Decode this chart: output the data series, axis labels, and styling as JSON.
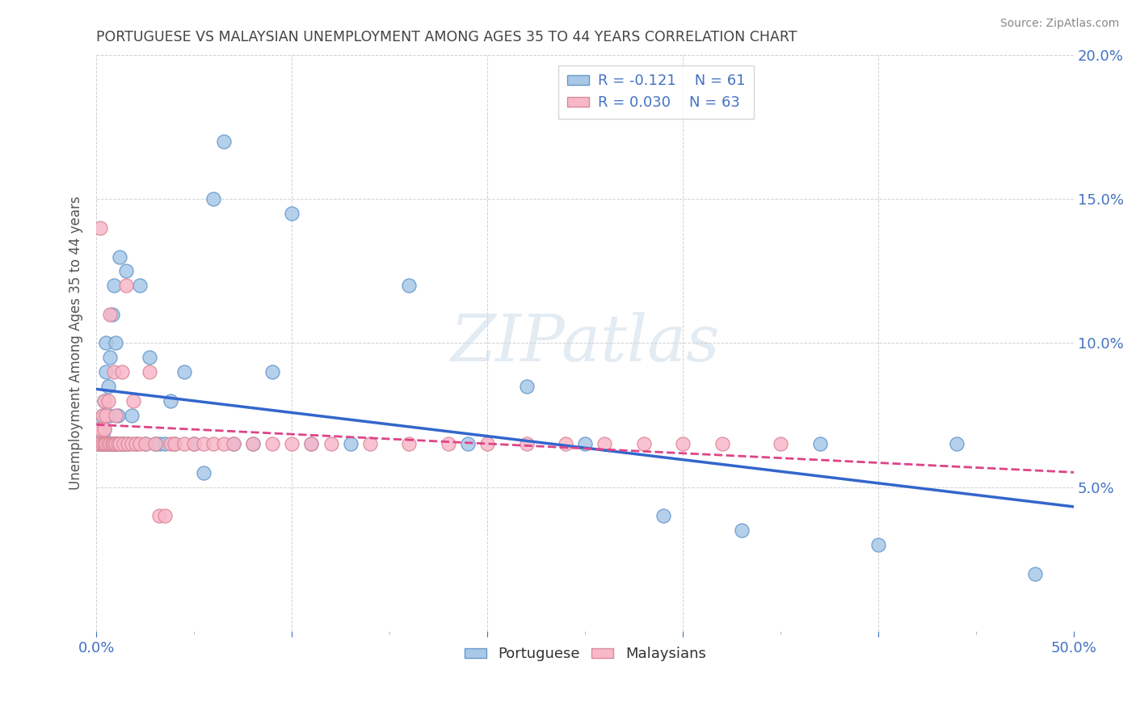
{
  "title": "PORTUGUESE VS MALAYSIAN UNEMPLOYMENT AMONG AGES 35 TO 44 YEARS CORRELATION CHART",
  "source": "Source: ZipAtlas.com",
  "ylabel": "Unemployment Among Ages 35 to 44 years",
  "xlim": [
    0,
    0.5
  ],
  "ylim": [
    0,
    0.2
  ],
  "portuguese_color": "#a8c8e8",
  "portuguese_edge_color": "#6699cc",
  "malaysian_color": "#f8b8c8",
  "malaysian_edge_color": "#dd8899",
  "portuguese_line_color": "#3366cc",
  "malaysian_line_color": "#dd4488",
  "title_color": "#444444",
  "axis_label_color": "#555555",
  "tick_color": "#4472c4",
  "watermark": "ZIPatlas",
  "portuguese_R": -0.121,
  "portuguese_N": 61,
  "malaysian_R": 0.03,
  "malaysian_N": 63,
  "port_x": [
    0.001,
    0.001,
    0.002,
    0.002,
    0.003,
    0.003,
    0.003,
    0.004,
    0.004,
    0.004,
    0.005,
    0.005,
    0.005,
    0.006,
    0.006,
    0.007,
    0.007,
    0.008,
    0.008,
    0.009,
    0.009,
    0.01,
    0.01,
    0.011,
    0.011,
    0.012,
    0.013,
    0.014,
    0.015,
    0.016,
    0.018,
    0.02,
    0.022,
    0.025,
    0.027,
    0.03,
    0.032,
    0.035,
    0.038,
    0.04,
    0.045,
    0.05,
    0.055,
    0.06,
    0.065,
    0.07,
    0.08,
    0.09,
    0.1,
    0.11,
    0.13,
    0.16,
    0.19,
    0.22,
    0.25,
    0.29,
    0.33,
    0.37,
    0.4,
    0.44,
    0.48
  ],
  "port_y": [
    0.065,
    0.07,
    0.065,
    0.072,
    0.065,
    0.068,
    0.075,
    0.065,
    0.07,
    0.08,
    0.065,
    0.09,
    0.1,
    0.065,
    0.085,
    0.075,
    0.095,
    0.065,
    0.11,
    0.065,
    0.12,
    0.065,
    0.1,
    0.065,
    0.075,
    0.13,
    0.065,
    0.065,
    0.125,
    0.065,
    0.075,
    0.065,
    0.12,
    0.065,
    0.095,
    0.065,
    0.065,
    0.065,
    0.08,
    0.065,
    0.09,
    0.065,
    0.055,
    0.15,
    0.17,
    0.065,
    0.065,
    0.09,
    0.145,
    0.065,
    0.065,
    0.12,
    0.065,
    0.085,
    0.065,
    0.04,
    0.035,
    0.065,
    0.03,
    0.065,
    0.02
  ],
  "malay_x": [
    0.001,
    0.001,
    0.002,
    0.002,
    0.002,
    0.003,
    0.003,
    0.003,
    0.004,
    0.004,
    0.004,
    0.005,
    0.005,
    0.005,
    0.006,
    0.006,
    0.007,
    0.007,
    0.008,
    0.008,
    0.009,
    0.009,
    0.01,
    0.01,
    0.011,
    0.012,
    0.013,
    0.014,
    0.015,
    0.016,
    0.018,
    0.019,
    0.02,
    0.022,
    0.025,
    0.027,
    0.03,
    0.032,
    0.035,
    0.038,
    0.04,
    0.045,
    0.05,
    0.055,
    0.06,
    0.065,
    0.07,
    0.08,
    0.09,
    0.1,
    0.11,
    0.12,
    0.14,
    0.16,
    0.18,
    0.2,
    0.22,
    0.24,
    0.26,
    0.28,
    0.3,
    0.32,
    0.35
  ],
  "malay_y": [
    0.065,
    0.07,
    0.07,
    0.065,
    0.14,
    0.065,
    0.065,
    0.075,
    0.07,
    0.065,
    0.08,
    0.065,
    0.065,
    0.075,
    0.065,
    0.08,
    0.065,
    0.11,
    0.065,
    0.065,
    0.09,
    0.065,
    0.065,
    0.075,
    0.065,
    0.065,
    0.09,
    0.065,
    0.12,
    0.065,
    0.065,
    0.08,
    0.065,
    0.065,
    0.065,
    0.09,
    0.065,
    0.04,
    0.04,
    0.065,
    0.065,
    0.065,
    0.065,
    0.065,
    0.065,
    0.065,
    0.065,
    0.065,
    0.065,
    0.065,
    0.065,
    0.065,
    0.065,
    0.065,
    0.065,
    0.065,
    0.065,
    0.065,
    0.065,
    0.065,
    0.065,
    0.065,
    0.065
  ]
}
